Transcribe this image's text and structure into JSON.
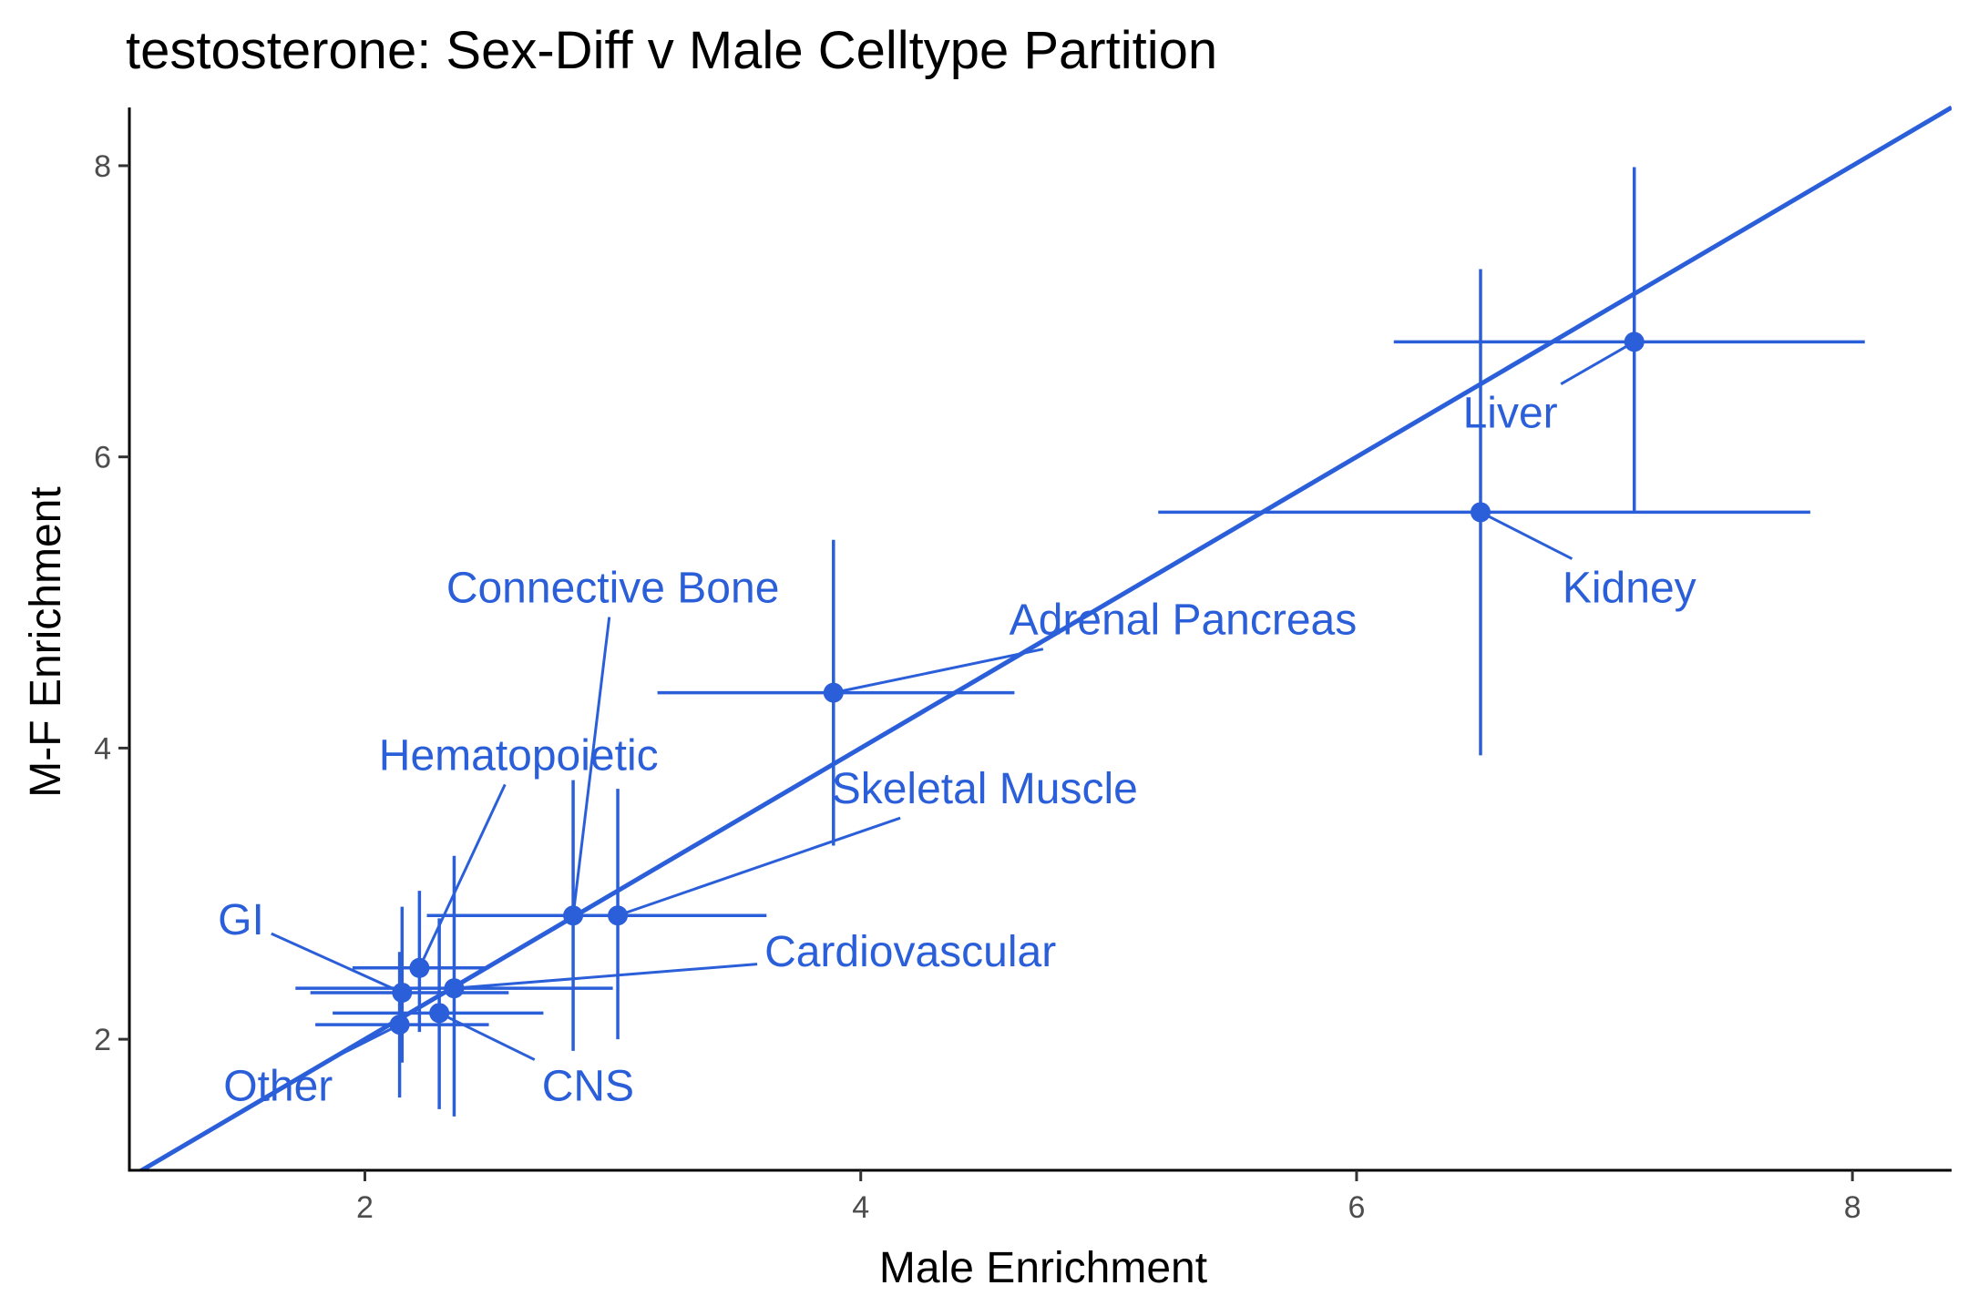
{
  "chart_data": {
    "type": "scatter",
    "title": "testosterone: Sex-Diff v Male Celltype Partition",
    "xlabel": "Male Enrichment",
    "ylabel": "M-F Enrichment",
    "xlim": [
      1.05,
      8.4
    ],
    "ylim": [
      1.1,
      8.4
    ],
    "xticks": [
      "2",
      "4",
      "6",
      "8"
    ],
    "yticks": [
      "2",
      "4",
      "6",
      "8"
    ],
    "grid": false,
    "legend": "none",
    "color": "#2b5fd9",
    "reference_line": {
      "slope": 1,
      "intercept": 0
    },
    "points": [
      {
        "label": "Liver",
        "x": 7.12,
        "y": 6.79,
        "xerr": [
          6.15,
          8.05
        ],
        "yerr": [
          5.63,
          7.99
        ],
        "label_x": 6.62,
        "label_y": 6.2
      },
      {
        "label": "Kidney",
        "x": 6.5,
        "y": 5.62,
        "xerr": [
          5.2,
          7.83
        ],
        "yerr": [
          3.95,
          7.29
        ],
        "label_x": 7.1,
        "label_y": 5.0
      },
      {
        "label": "Adrenal Pancreas",
        "x": 3.89,
        "y": 4.38,
        "xerr": [
          3.18,
          4.62
        ],
        "yerr": [
          3.33,
          5.43
        ],
        "label_x": 5.3,
        "label_y": 4.78
      },
      {
        "label": "Skeletal Muscle",
        "x": 3.02,
        "y": 2.85,
        "xerr": [
          2.42,
          3.62
        ],
        "yerr": [
          2.0,
          3.72
        ],
        "label_x": 4.5,
        "label_y": 3.62
      },
      {
        "label": "Connective Bone",
        "x": 2.84,
        "y": 2.85,
        "xerr": [
          2.25,
          3.42
        ],
        "yerr": [
          1.92,
          3.78
        ],
        "label_x": 3.0,
        "label_y": 5.0
      },
      {
        "label": "Hematopoietic",
        "x": 2.22,
        "y": 2.49,
        "xerr": [
          1.95,
          2.5
        ],
        "yerr": [
          2.05,
          3.02
        ],
        "label_x": 2.62,
        "label_y": 3.85
      },
      {
        "label": "GI",
        "x": 2.15,
        "y": 2.32,
        "xerr": [
          1.78,
          2.58
        ],
        "yerr": [
          1.84,
          2.91
        ],
        "label_x": 1.5,
        "label_y": 2.72
      },
      {
        "label": "Cardiovascular",
        "x": 2.36,
        "y": 2.35,
        "xerr": [
          1.72,
          3.0
        ],
        "yerr": [
          1.47,
          3.26
        ],
        "label_x": 4.2,
        "label_y": 2.5
      },
      {
        "label": "CNS",
        "x": 2.3,
        "y": 2.18,
        "xerr": [
          1.87,
          2.72
        ],
        "yerr": [
          1.52,
          2.83
        ],
        "label_x": 2.9,
        "label_y": 1.58
      },
      {
        "label": "Other",
        "x": 2.14,
        "y": 2.1,
        "xerr": [
          1.8,
          2.5
        ],
        "yerr": [
          1.6,
          2.6
        ],
        "label_x": 1.65,
        "label_y": 1.58
      }
    ]
  }
}
